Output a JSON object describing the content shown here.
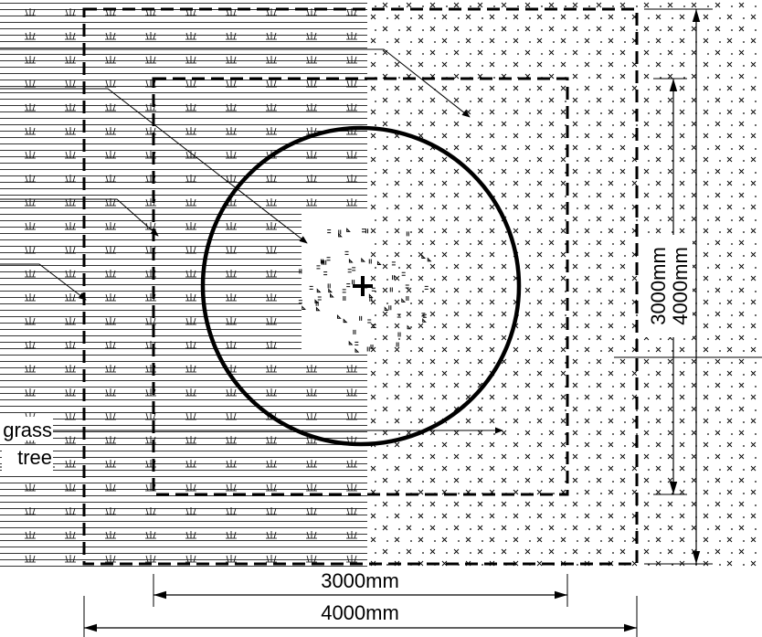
{
  "diagram": {
    "legend": {
      "grass_label": "grass",
      "tree_label": "tree"
    },
    "dimensions": {
      "inner_width": "3000mm",
      "outer_width": "4000mm",
      "inner_height": "3000mm",
      "outer_height": "4000mm"
    },
    "colors": {
      "ink": "#000000",
      "background": "#ffffff"
    }
  }
}
